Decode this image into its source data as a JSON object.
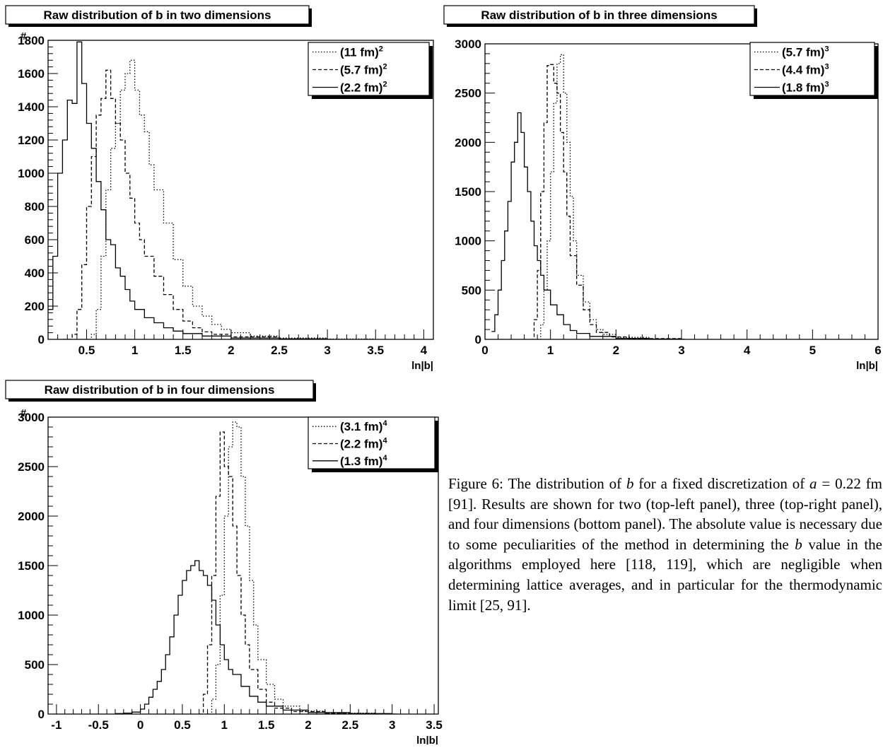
{
  "chart_data": [
    {
      "type": "histogram",
      "title": "Raw distribution of b in two dimensions",
      "xlabel": "ln|b|",
      "ylabel": "#",
      "xlim": [
        0.1,
        4.1
      ],
      "ylim": [
        0,
        1800
      ],
      "xticks": [
        0.5,
        1,
        1.5,
        2,
        2.5,
        3,
        3.5,
        4
      ],
      "yticks": [
        0,
        200,
        400,
        600,
        800,
        1000,
        1200,
        1400,
        1600,
        1800
      ],
      "legend_position": "top-right",
      "series": [
        {
          "name": "(11 fm)",
          "exp": "2",
          "style": "dotted",
          "points": [
            [
              0.45,
              0
            ],
            [
              0.55,
              30
            ],
            [
              0.6,
              180
            ],
            [
              0.65,
              500
            ],
            [
              0.7,
              900
            ],
            [
              0.75,
              1150
            ],
            [
              0.8,
              1300
            ],
            [
              0.85,
              1500
            ],
            [
              0.9,
              1600
            ],
            [
              0.95,
              1680
            ],
            [
              1.0,
              1500
            ],
            [
              1.05,
              1350
            ],
            [
              1.1,
              1250
            ],
            [
              1.15,
              1050
            ],
            [
              1.2,
              900
            ],
            [
              1.3,
              700
            ],
            [
              1.4,
              480
            ],
            [
              1.5,
              320
            ],
            [
              1.6,
              200
            ],
            [
              1.7,
              140
            ],
            [
              1.8,
              90
            ],
            [
              1.9,
              60
            ],
            [
              2.0,
              40
            ],
            [
              2.2,
              20
            ],
            [
              2.5,
              8
            ],
            [
              3.0,
              2
            ],
            [
              3.5,
              0
            ]
          ]
        },
        {
          "name": "(5.7 fm)",
          "exp": "2",
          "style": "dashed",
          "points": [
            [
              0.25,
              0
            ],
            [
              0.35,
              30
            ],
            [
              0.4,
              180
            ],
            [
              0.45,
              450
            ],
            [
              0.5,
              800
            ],
            [
              0.55,
              1100
            ],
            [
              0.6,
              1350
            ],
            [
              0.65,
              1450
            ],
            [
              0.7,
              1620
            ],
            [
              0.75,
              1450
            ],
            [
              0.8,
              1300
            ],
            [
              0.85,
              1200
            ],
            [
              0.9,
              1000
            ],
            [
              0.95,
              850
            ],
            [
              1.0,
              700
            ],
            [
              1.05,
              600
            ],
            [
              1.1,
              500
            ],
            [
              1.2,
              380
            ],
            [
              1.3,
              270
            ],
            [
              1.4,
              180
            ],
            [
              1.5,
              110
            ],
            [
              1.6,
              70
            ],
            [
              1.7,
              45
            ],
            [
              1.8,
              30
            ],
            [
              2.0,
              15
            ],
            [
              2.5,
              4
            ],
            [
              3.0,
              0
            ]
          ]
        },
        {
          "name": "(2.2 fm)",
          "exp": "2",
          "style": "solid",
          "points": [
            [
              0.1,
              180
            ],
            [
              0.15,
              500
            ],
            [
              0.2,
              1000
            ],
            [
              0.25,
              1200
            ],
            [
              0.3,
              1440
            ],
            [
              0.35,
              1420
            ],
            [
              0.4,
              1790
            ],
            [
              0.45,
              1540
            ],
            [
              0.5,
              1300
            ],
            [
              0.55,
              1150
            ],
            [
              0.6,
              950
            ],
            [
              0.65,
              780
            ],
            [
              0.7,
              600
            ],
            [
              0.75,
              570
            ],
            [
              0.8,
              430
            ],
            [
              0.85,
              380
            ],
            [
              0.9,
              300
            ],
            [
              0.95,
              230
            ],
            [
              1.0,
              180
            ],
            [
              1.1,
              130
            ],
            [
              1.2,
              100
            ],
            [
              1.3,
              70
            ],
            [
              1.4,
              50
            ],
            [
              1.5,
              35
            ],
            [
              1.7,
              20
            ],
            [
              2.0,
              8
            ],
            [
              2.5,
              3
            ],
            [
              3.0,
              0
            ]
          ]
        }
      ]
    },
    {
      "type": "histogram",
      "title": "Raw distribution of b in three dimensions",
      "xlabel": "ln|b|",
      "ylabel": "",
      "xlim": [
        0,
        6
      ],
      "ylim": [
        0,
        3000
      ],
      "xticks": [
        0,
        1,
        2,
        3,
        4,
        5,
        6
      ],
      "yticks": [
        0,
        500,
        1000,
        1500,
        2000,
        2500,
        3000
      ],
      "legend_position": "top-right",
      "series": [
        {
          "name": "(5.7 fm)",
          "exp": "3",
          "style": "dotted",
          "points": [
            [
              0.8,
              0
            ],
            [
              0.85,
              150
            ],
            [
              0.9,
              500
            ],
            [
              0.95,
              1000
            ],
            [
              1.0,
              1700
            ],
            [
              1.05,
              2400
            ],
            [
              1.1,
              2800
            ],
            [
              1.15,
              2890
            ],
            [
              1.2,
              2500
            ],
            [
              1.25,
              2000
            ],
            [
              1.3,
              1450
            ],
            [
              1.35,
              1000
            ],
            [
              1.4,
              650
            ],
            [
              1.5,
              380
            ],
            [
              1.6,
              200
            ],
            [
              1.7,
              100
            ],
            [
              1.8,
              50
            ],
            [
              2.0,
              20
            ],
            [
              2.5,
              5
            ],
            [
              3.0,
              0
            ]
          ]
        },
        {
          "name": "(4.4 fm)",
          "exp": "3",
          "style": "dashed",
          "points": [
            [
              0.7,
              0
            ],
            [
              0.75,
              200
            ],
            [
              0.8,
              700
            ],
            [
              0.85,
              1500
            ],
            [
              0.9,
              2200
            ],
            [
              0.95,
              2780
            ],
            [
              1.0,
              2790
            ],
            [
              1.05,
              2600
            ],
            [
              1.1,
              2500
            ],
            [
              1.15,
              2100
            ],
            [
              1.2,
              1700
            ],
            [
              1.25,
              1250
            ],
            [
              1.3,
              850
            ],
            [
              1.4,
              550
            ],
            [
              1.5,
              300
            ],
            [
              1.6,
              150
            ],
            [
              1.7,
              70
            ],
            [
              1.9,
              25
            ],
            [
              2.2,
              8
            ],
            [
              3.0,
              0
            ]
          ]
        },
        {
          "name": "(1.8 fm)",
          "exp": "3",
          "style": "solid",
          "points": [
            [
              0.1,
              80
            ],
            [
              0.15,
              250
            ],
            [
              0.2,
              500
            ],
            [
              0.25,
              800
            ],
            [
              0.3,
              1100
            ],
            [
              0.35,
              1400
            ],
            [
              0.4,
              1800
            ],
            [
              0.45,
              2000
            ],
            [
              0.5,
              2300
            ],
            [
              0.55,
              2100
            ],
            [
              0.6,
              1750
            ],
            [
              0.65,
              1500
            ],
            [
              0.7,
              1200
            ],
            [
              0.75,
              950
            ],
            [
              0.8,
              800
            ],
            [
              0.85,
              650
            ],
            [
              0.9,
              500
            ],
            [
              1.0,
              350
            ],
            [
              1.1,
              250
            ],
            [
              1.2,
              150
            ],
            [
              1.3,
              90
            ],
            [
              1.4,
              60
            ],
            [
              1.6,
              30
            ],
            [
              2.0,
              10
            ],
            [
              2.5,
              3
            ],
            [
              3.0,
              0
            ]
          ]
        }
      ]
    },
    {
      "type": "histogram",
      "title": "Raw distribution of b in four dimensions",
      "xlabel": "ln|b|",
      "ylabel": "#",
      "xlim": [
        -1.1,
        3.55
      ],
      "ylim": [
        0,
        3000
      ],
      "xticks": [
        -1,
        -0.5,
        0,
        0.5,
        1,
        1.5,
        2,
        2.5,
        3,
        3.5
      ],
      "yticks": [
        0,
        500,
        1000,
        1500,
        2000,
        2500,
        3000
      ],
      "legend_position": "top-right",
      "series": [
        {
          "name": "(3.1 fm)",
          "exp": "4",
          "style": "dotted",
          "points": [
            [
              0.8,
              0
            ],
            [
              0.85,
              150
            ],
            [
              0.9,
              500
            ],
            [
              0.95,
              1200
            ],
            [
              1.0,
              2000
            ],
            [
              1.05,
              2700
            ],
            [
              1.1,
              2950
            ],
            [
              1.15,
              2900
            ],
            [
              1.2,
              2400
            ],
            [
              1.25,
              1900
            ],
            [
              1.3,
              1350
            ],
            [
              1.35,
              900
            ],
            [
              1.4,
              550
            ],
            [
              1.5,
              300
            ],
            [
              1.6,
              150
            ],
            [
              1.7,
              80
            ],
            [
              1.9,
              30
            ],
            [
              2.2,
              10
            ],
            [
              2.8,
              0
            ]
          ]
        },
        {
          "name": "(2.2 fm)",
          "exp": "4",
          "style": "dashed",
          "points": [
            [
              0.7,
              0
            ],
            [
              0.75,
              200
            ],
            [
              0.8,
              700
            ],
            [
              0.85,
              1400
            ],
            [
              0.9,
              2200
            ],
            [
              0.95,
              2850
            ],
            [
              1.0,
              2500
            ],
            [
              1.05,
              2400
            ],
            [
              1.1,
              1900
            ],
            [
              1.15,
              1400
            ],
            [
              1.2,
              1000
            ],
            [
              1.25,
              700
            ],
            [
              1.3,
              450
            ],
            [
              1.4,
              250
            ],
            [
              1.5,
              120
            ],
            [
              1.6,
              60
            ],
            [
              1.8,
              25
            ],
            [
              2.2,
              5
            ],
            [
              2.8,
              0
            ]
          ]
        },
        {
          "name": "(1.3 fm)",
          "exp": "4",
          "style": "solid",
          "points": [
            [
              -0.3,
              5
            ],
            [
              -0.2,
              10
            ],
            [
              -0.1,
              20
            ],
            [
              0.0,
              50
            ],
            [
              0.05,
              100
            ],
            [
              0.1,
              170
            ],
            [
              0.15,
              250
            ],
            [
              0.2,
              330
            ],
            [
              0.25,
              450
            ],
            [
              0.3,
              600
            ],
            [
              0.35,
              780
            ],
            [
              0.4,
              1000
            ],
            [
              0.45,
              1200
            ],
            [
              0.5,
              1350
            ],
            [
              0.55,
              1450
            ],
            [
              0.6,
              1500
            ],
            [
              0.65,
              1550
            ],
            [
              0.7,
              1450
            ],
            [
              0.75,
              1400
            ],
            [
              0.8,
              1300
            ],
            [
              0.85,
              1150
            ],
            [
              0.9,
              900
            ],
            [
              0.95,
              700
            ],
            [
              1.0,
              550
            ],
            [
              1.05,
              450
            ],
            [
              1.1,
              400
            ],
            [
              1.2,
              280
            ],
            [
              1.3,
              180
            ],
            [
              1.4,
              120
            ],
            [
              1.5,
              80
            ],
            [
              1.7,
              40
            ],
            [
              2.0,
              15
            ],
            [
              2.5,
              5
            ],
            [
              3.0,
              0
            ]
          ]
        }
      ]
    }
  ],
  "caption": {
    "label": "Figure 6:",
    "part1": " The distribution of ",
    "var_b1": "b",
    "part2": " for a fixed discretization of ",
    "var_a": "a",
    "part3": " = 0.22 fm [91]. Results are shown for two (top-left panel), three (top-right panel), and four dimensions (bottom panel). The absolute value is necessary due to some peculiarities of the method in determining the ",
    "var_b2": "b",
    "part4": " value in the algorithms employed here [118, 119], which are negligible when determining lattice averages, and in particular for the thermodynamic limit [25, 91]."
  }
}
